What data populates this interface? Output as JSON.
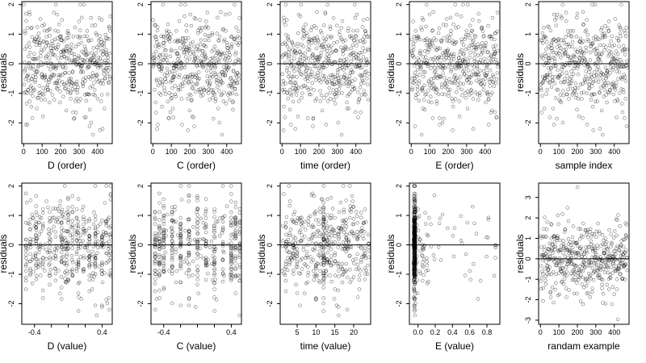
{
  "figure": {
    "background": "#ffffff",
    "point_color": "#000000",
    "point_style": "open-circle",
    "zero_line_color": "#000000"
  },
  "chart_data": [
    {
      "type": "scatter",
      "title": "",
      "xlabel": "D (order)",
      "ylabel": "residuals",
      "xlim": [
        -10,
        480
      ],
      "ylim": [
        -2.7,
        2.1
      ],
      "x_ticks": [
        0,
        100,
        200,
        300,
        400
      ],
      "x_tick_labels": [
        "0",
        "100",
        "200",
        "300",
        "400"
      ],
      "y_ticks": [
        -2,
        -1,
        0,
        1,
        2
      ],
      "y_tick_labels": [
        "-2",
        "-1",
        "0",
        "1",
        "2"
      ],
      "reference_line_y": 0,
      "x": [],
      "y": []
    },
    {
      "type": "scatter",
      "title": "",
      "xlabel": "C (order)",
      "ylabel": "residuals",
      "xlim": [
        -10,
        480
      ],
      "ylim": [
        -2.7,
        2.1
      ],
      "x_ticks": [
        0,
        100,
        200,
        300,
        400
      ],
      "x_tick_labels": [
        "0",
        "100",
        "200",
        "300",
        "400"
      ],
      "y_ticks": [
        -2,
        -1,
        0,
        1,
        2
      ],
      "y_tick_labels": [
        "-2",
        "-1",
        "0",
        "1",
        "2"
      ],
      "reference_line_y": 0,
      "x": [],
      "y": []
    },
    {
      "type": "scatter",
      "title": "",
      "xlabel": "time (order)",
      "ylabel": "residuals",
      "xlim": [
        -10,
        480
      ],
      "ylim": [
        -2.7,
        2.1
      ],
      "x_ticks": [
        0,
        100,
        200,
        300,
        400
      ],
      "x_tick_labels": [
        "0",
        "100",
        "200",
        "300",
        "400"
      ],
      "y_ticks": [
        -2,
        -1,
        0,
        1,
        2
      ],
      "y_tick_labels": [
        "-2",
        "-1",
        "0",
        "1",
        "2"
      ],
      "reference_line_y": 0,
      "x": [],
      "y": []
    },
    {
      "type": "scatter",
      "title": "",
      "xlabel": "E (order)",
      "ylabel": "residuals",
      "xlim": [
        -10,
        480
      ],
      "ylim": [
        -2.7,
        2.1
      ],
      "x_ticks": [
        0,
        100,
        200,
        300,
        400
      ],
      "x_tick_labels": [
        "0",
        "100",
        "200",
        "300",
        "400"
      ],
      "y_ticks": [
        -2,
        -1,
        0,
        1,
        2
      ],
      "y_tick_labels": [
        "-2",
        "-1",
        "0",
        "1",
        "2"
      ],
      "reference_line_y": 0,
      "x": [],
      "y": []
    },
    {
      "type": "scatter",
      "title": "",
      "xlabel": "sample index",
      "ylabel": "residuals",
      "xlim": [
        -10,
        480
      ],
      "ylim": [
        -2.7,
        2.1
      ],
      "x_ticks": [
        0,
        100,
        200,
        300,
        400
      ],
      "x_tick_labels": [
        "0",
        "100",
        "200",
        "300",
        "400"
      ],
      "y_ticks": [
        -2,
        -1,
        0,
        1,
        2
      ],
      "y_tick_labels": [
        "-2",
        "-1",
        "0",
        "1",
        "2"
      ],
      "reference_line_y": 0,
      "x": [],
      "y": []
    },
    {
      "type": "scatter",
      "title": "",
      "xlabel": "D (value)",
      "ylabel": "residuals",
      "xlim": [
        -0.55,
        0.52
      ],
      "ylim": [
        -2.7,
        2.1
      ],
      "x_ticks": [
        -0.4,
        -0.2,
        0.0,
        0.2,
        0.4
      ],
      "x_tick_labels": [
        "-0.4",
        "",
        "",
        "",
        "0.4"
      ],
      "y_ticks": [
        -2,
        -1,
        0,
        1,
        2
      ],
      "y_tick_labels": [
        "-2",
        "-1",
        "0",
        "1",
        "2"
      ],
      "reference_line_y": 0,
      "x": [],
      "y": []
    },
    {
      "type": "scatter",
      "title": "",
      "xlabel": "C (value)",
      "ylabel": "residuals",
      "xlim": [
        -0.55,
        0.52
      ],
      "ylim": [
        -2.7,
        2.1
      ],
      "x_ticks": [
        -0.4,
        -0.2,
        0.0,
        0.2,
        0.4
      ],
      "x_tick_labels": [
        "-0.4",
        "",
        "",
        "",
        "0.4"
      ],
      "y_ticks": [
        -2,
        -1,
        0,
        1,
        2
      ],
      "y_tick_labels": [
        "-2",
        "-1",
        "0",
        "1",
        "2"
      ],
      "reference_line_y": 0,
      "x": [],
      "y": []
    },
    {
      "type": "scatter",
      "title": "",
      "xlabel": "time (value)",
      "ylabel": "residuals",
      "xlim": [
        0.5,
        24.5
      ],
      "ylim": [
        -2.7,
        2.1
      ],
      "x_ticks": [
        5,
        10,
        15,
        20
      ],
      "x_tick_labels": [
        "5",
        "10",
        "15",
        "20"
      ],
      "y_ticks": [
        -2,
        -1,
        0,
        1,
        2
      ],
      "y_tick_labels": [
        "-2",
        "-1",
        "0",
        "1",
        "2"
      ],
      "reference_line_y": 0,
      "x": [],
      "y": []
    },
    {
      "type": "scatter",
      "title": "",
      "xlabel": "E (value)",
      "ylabel": "residuals",
      "xlim": [
        -0.1,
        0.95
      ],
      "ylim": [
        -2.7,
        2.1
      ],
      "x_ticks": [
        0.0,
        0.2,
        0.4,
        0.6,
        0.8
      ],
      "x_tick_labels": [
        "0.0",
        "0.2",
        "0.4",
        "0.6",
        "0.8"
      ],
      "y_ticks": [
        -2,
        -1,
        0,
        1,
        2
      ],
      "y_tick_labels": [
        "-2",
        "-1",
        "0",
        "1",
        "2"
      ],
      "reference_line_y": 0,
      "x": [],
      "y": []
    },
    {
      "type": "scatter",
      "title": "",
      "xlabel": "randam example",
      "ylabel": "residuals",
      "xlim": [
        -10,
        480
      ],
      "ylim": [
        -3.2,
        3.7
      ],
      "x_ticks": [
        0,
        100,
        200,
        300,
        400
      ],
      "x_tick_labels": [
        "0",
        "100",
        "200",
        "300",
        "400"
      ],
      "y_ticks": [
        -3,
        -2,
        -1,
        0,
        1,
        2,
        3
      ],
      "y_tick_labels": [
        "-3",
        "-2",
        "-1",
        "0",
        "1",
        "2",
        "3"
      ],
      "reference_line_y": 0,
      "x": [],
      "y": []
    }
  ]
}
